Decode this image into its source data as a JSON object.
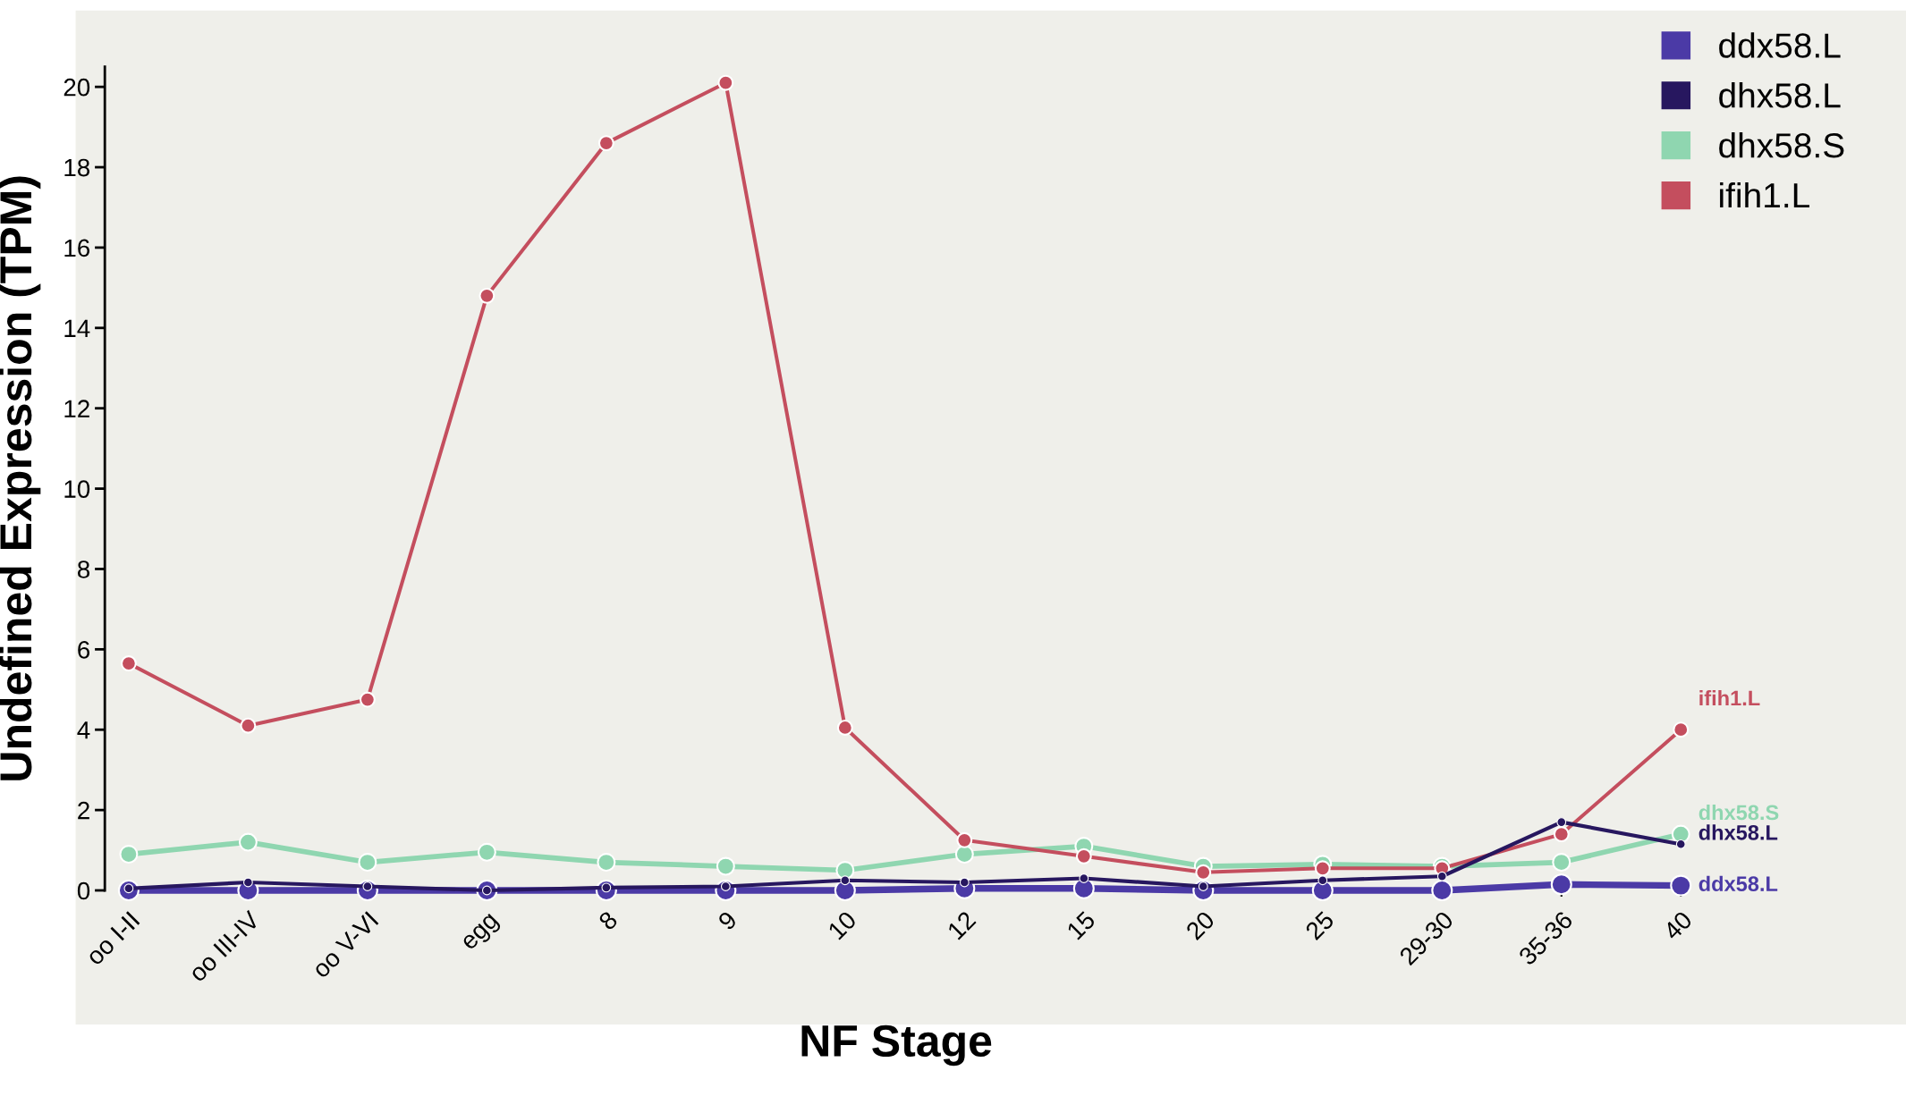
{
  "chart_data": {
    "type": "line",
    "xlabel": "NF Stage",
    "ylabel": "Undefined Expression (TPM)",
    "categories": [
      "oo I-II",
      "oo III-IV",
      "oo V-VI",
      "egg",
      "8",
      "9",
      "10",
      "12",
      "15",
      "20",
      "25",
      "29-30",
      "35-36",
      "40"
    ],
    "series": [
      {
        "name": "ddx58.L",
        "color": "#4b3aa6",
        "values": [
          0.0,
          0.0,
          0.0,
          0.0,
          0.0,
          0.0,
          0.0,
          0.05,
          0.05,
          0.0,
          0.0,
          0.0,
          0.15,
          0.12
        ]
      },
      {
        "name": "dhx58.L",
        "color": "#27175f",
        "values": [
          0.05,
          0.2,
          0.1,
          0.0,
          0.07,
          0.1,
          0.25,
          0.2,
          0.3,
          0.1,
          0.25,
          0.35,
          1.7,
          1.15
        ]
      },
      {
        "name": "dhx58.S",
        "color": "#8fd6b0",
        "values": [
          0.9,
          1.2,
          0.7,
          0.95,
          0.7,
          0.6,
          0.5,
          0.9,
          1.1,
          0.6,
          0.65,
          0.6,
          0.7,
          1.4
        ]
      },
      {
        "name": "ifih1.L",
        "color": "#c44e5e",
        "values": [
          5.65,
          4.1,
          4.75,
          14.8,
          18.6,
          20.1,
          4.05,
          1.25,
          0.85,
          0.45,
          0.55,
          0.55,
          1.4,
          4.0
        ]
      }
    ],
    "ylim": [
      0,
      20.5
    ],
    "yticks": [
      0,
      2,
      4,
      6,
      8,
      10,
      12,
      14,
      16,
      18,
      20
    ],
    "grid": false,
    "legend": "top right",
    "marker": "circle",
    "line_style": "solid"
  }
}
